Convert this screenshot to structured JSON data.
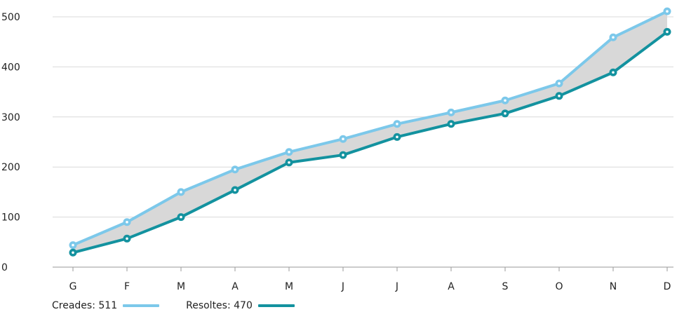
{
  "chart_data": {
    "type": "line",
    "categories": [
      "G",
      "F",
      "M",
      "A",
      "M",
      "J",
      "J",
      "A",
      "S",
      "O",
      "N",
      "D"
    ],
    "series": [
      {
        "name": "Creades",
        "color": "#7cc8ea",
        "values": [
          44,
          90,
          150,
          195,
          230,
          256,
          286,
          309,
          333,
          367,
          459,
          511
        ]
      },
      {
        "name": "Resoltes",
        "color": "#13929f",
        "values": [
          29,
          57,
          100,
          154,
          209,
          224,
          260,
          286,
          307,
          342,
          389,
          470
        ]
      }
    ],
    "fill_between_color": "#d8d8d8",
    "ylim": [
      0,
      500
    ],
    "yticks": [
      0,
      100,
      200,
      300,
      400,
      500
    ],
    "grid": true,
    "title": "",
    "xlabel": "",
    "ylabel": ""
  },
  "legend": {
    "created_label": "Creades: 511",
    "resolved_label": "Resoltes: 470"
  }
}
